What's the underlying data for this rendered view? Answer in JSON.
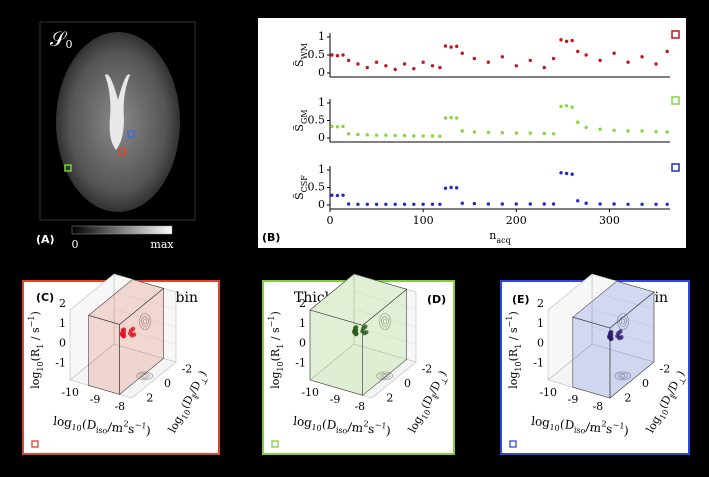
{
  "panel_a": {
    "label": "(A)",
    "symbol": "𝒮",
    "symbol_sub": "0",
    "colorbar_min": "0",
    "colorbar_max": "max"
  },
  "panel_b": {
    "label": "(B)"
  },
  "chart_data": [
    {
      "type": "scatter",
      "y_label": [
        "S̃",
        "WM"
      ],
      "color": "#c8141c",
      "x": [
        2,
        8,
        14,
        20,
        30,
        40,
        50,
        60,
        70,
        80,
        90,
        100,
        110,
        118,
        124,
        130,
        136,
        142,
        155,
        170,
        185,
        200,
        215,
        230,
        240,
        248,
        254,
        260,
        266,
        275,
        290,
        305,
        320,
        335,
        350,
        362
      ],
      "values": [
        0.5,
        0.48,
        0.5,
        0.35,
        0.25,
        0.15,
        0.3,
        0.2,
        0.1,
        0.25,
        0.12,
        0.3,
        0.2,
        0.15,
        0.75,
        0.72,
        0.74,
        0.55,
        0.4,
        0.3,
        0.45,
        0.2,
        0.35,
        0.15,
        0.4,
        0.92,
        0.88,
        0.9,
        0.6,
        0.5,
        0.35,
        0.55,
        0.3,
        0.45,
        0.25,
        0.6
      ],
      "xlim": [
        0,
        365
      ],
      "ylim": [
        0,
        1
      ],
      "yticks": [
        0,
        0.5,
        1
      ]
    },
    {
      "type": "scatter",
      "y_label": [
        "S̃",
        "GM"
      ],
      "color": "#86d83a",
      "x": [
        2,
        8,
        14,
        20,
        30,
        40,
        50,
        60,
        70,
        80,
        90,
        100,
        110,
        118,
        124,
        130,
        136,
        142,
        155,
        170,
        185,
        200,
        215,
        230,
        240,
        248,
        254,
        260,
        266,
        275,
        290,
        305,
        320,
        335,
        350,
        362
      ],
      "values": [
        0.33,
        0.32,
        0.33,
        0.12,
        0.1,
        0.09,
        0.08,
        0.08,
        0.07,
        0.07,
        0.06,
        0.06,
        0.06,
        0.05,
        0.57,
        0.58,
        0.57,
        0.2,
        0.17,
        0.16,
        0.15,
        0.14,
        0.14,
        0.13,
        0.12,
        0.9,
        0.92,
        0.88,
        0.45,
        0.3,
        0.25,
        0.22,
        0.2,
        0.2,
        0.18,
        0.17
      ],
      "xlim": [
        0,
        365
      ],
      "ylim": [
        0,
        1
      ],
      "yticks": [
        0,
        0.5,
        1
      ]
    },
    {
      "type": "scatter",
      "y_label": [
        "S̃",
        "CSF"
      ],
      "color": "#1f2fc4",
      "x": [
        2,
        8,
        14,
        20,
        30,
        40,
        50,
        60,
        70,
        80,
        90,
        100,
        110,
        118,
        124,
        130,
        136,
        142,
        155,
        170,
        185,
        200,
        215,
        230,
        240,
        248,
        254,
        260,
        266,
        275,
        290,
        305,
        320,
        335,
        350,
        362
      ],
      "values": [
        0.28,
        0.27,
        0.28,
        0.03,
        0.02,
        0.02,
        0.02,
        0.02,
        0.02,
        0.02,
        0.02,
        0.02,
        0.02,
        0.02,
        0.48,
        0.5,
        0.49,
        0.05,
        0.04,
        0.03,
        0.03,
        0.03,
        0.03,
        0.03,
        0.03,
        0.92,
        0.9,
        0.88,
        0.12,
        0.05,
        0.03,
        0.03,
        0.02,
        0.02,
        0.02,
        0.02
      ],
      "xlim": [
        0,
        365
      ],
      "ylim": [
        0,
        1
      ],
      "yticks": [
        0,
        0.5,
        1
      ],
      "xticks": [
        0,
        100,
        200,
        300
      ],
      "x_label": [
        "n",
        "acq"
      ]
    }
  ],
  "axes_3d": {
    "z_label": [
      "log",
      "10",
      "(R",
      "1",
      " / s",
      "−1",
      ")"
    ],
    "x_label": [
      "log",
      "10",
      "(D",
      "iso",
      "/m",
      "2",
      "s",
      "−1",
      ")"
    ],
    "y_label": [
      "log",
      "10",
      "(D",
      "∥",
      "/D",
      "⊥",
      ")"
    ],
    "z_ticks": [
      2,
      1,
      0,
      -1
    ],
    "x_ticks": [
      -10,
      -9,
      -8
    ],
    "y_ticks": [
      2,
      0,
      -2
    ]
  },
  "panels_3d": [
    {
      "label": "(C)",
      "title": "Thin bin",
      "color": "#e0442a"
    },
    {
      "label": "(D)",
      "title": "Thick bin",
      "color": "#7fd13b"
    },
    {
      "label": "(E)",
      "title": "Big bin",
      "color": "#2b48e0"
    }
  ]
}
